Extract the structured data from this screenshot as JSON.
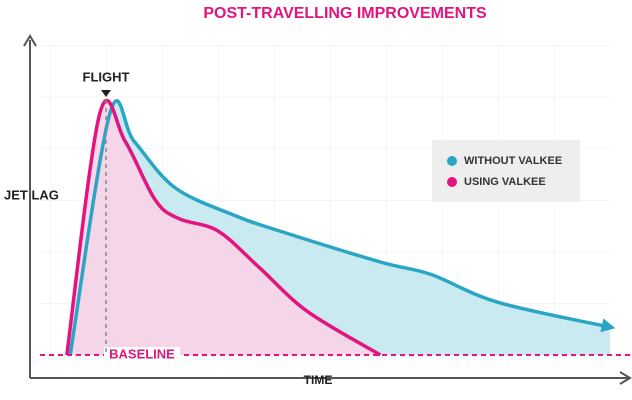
{
  "chart_data": {
    "type": "area",
    "title": "POST-TRAVELLING IMPROVEMENTS",
    "x_label": "TIME",
    "y_label": "JET LAG",
    "xlim": [
      0,
      100
    ],
    "ylim": [
      0,
      100
    ],
    "flight": {
      "text": "FLIGHT",
      "x": 10
    },
    "baseline": {
      "text": "BASELINE",
      "y": 0
    },
    "legend": "right",
    "series": [
      {
        "name": "WITHOUT VALKEE",
        "color": "#2aa6c4",
        "fill": "#c3e8f0",
        "x": [
          3.6,
          10.7,
          15,
          22.3,
          33,
          41,
          59,
          68,
          80,
          100
        ],
        "values": [
          0,
          78,
          69,
          54,
          45,
          40,
          30,
          26,
          17,
          9
        ]
      },
      {
        "name": "USING VALKEE",
        "color": "#e3147f",
        "fill": "#fad3e7",
        "x": [
          3,
          8.9,
          13.4,
          18.8,
          23,
          30,
          37.5,
          46,
          59
        ],
        "values": [
          0,
          78,
          69,
          50,
          44,
          40,
          28,
          14,
          0
        ]
      }
    ]
  }
}
